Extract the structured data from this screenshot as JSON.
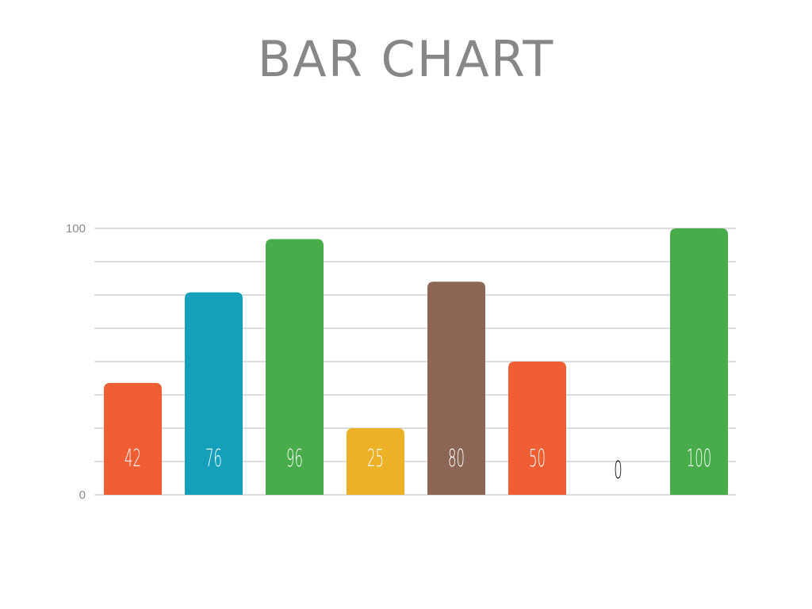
{
  "chart_data": {
    "type": "bar",
    "title": "BAR CHART",
    "xlabel": "",
    "ylabel": "",
    "ylim": [
      0,
      100
    ],
    "yticks": [
      "0",
      "100"
    ],
    "grid": true,
    "grid_step": 12.5,
    "values": [
      42,
      76,
      96,
      25,
      80,
      50,
      0,
      100
    ],
    "data_labels": [
      "42",
      "76",
      "96",
      "25",
      "80",
      "50",
      "0",
      "100"
    ],
    "colors": [
      "#f05f34",
      "#149fbb",
      "#47ac49",
      "#ecb127",
      "#8b6654",
      "#f05f34",
      "#cccccc",
      "#47ac49"
    ],
    "grid_color": "#dddddd",
    "label_color_inside": "#ffffff",
    "label_color_outside": "#000000"
  }
}
